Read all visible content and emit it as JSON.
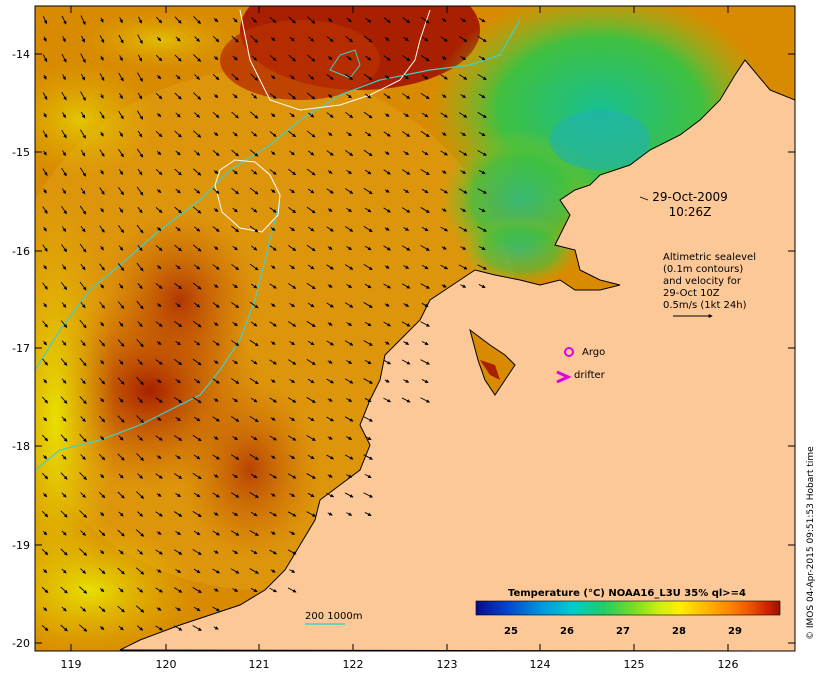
{
  "map": {
    "date_stamp": "29-Oct-2009",
    "time_stamp": "10:26Z",
    "lat_ticks": [
      "-14",
      "-15",
      "-16",
      "-17",
      "-18",
      "-19",
      "-20"
    ],
    "lon_ticks": [
      "119",
      "120",
      "121",
      "122",
      "123",
      "124",
      "125",
      "126"
    ]
  },
  "legend_text": {
    "line1": "Altimetric sealevel",
    "line2": "(0.1m contours)",
    "line3": "and velocity for",
    "line4": "29-Oct 10Z",
    "line5": "0.5m/s (1kt 24h)"
  },
  "markers": {
    "argo_label": "Argo",
    "drifter_label": "drifter"
  },
  "scale_bar": {
    "bathymetry_label": "200  1000m"
  },
  "colorbar": {
    "title": "Temperature (°C) NOAA16_L3U 35% ql>=4",
    "ticks": [
      "25",
      "26",
      "27",
      "28",
      "29"
    ],
    "colors": [
      "#0a0a8c",
      "#0044cc",
      "#0099dd",
      "#00cccc",
      "#22cc66",
      "#77dd22",
      "#ccee11",
      "#ffee00",
      "#ffbb00",
      "#ff8800",
      "#ee5500",
      "#cc2200",
      "#991100"
    ]
  },
  "credit": "© IMOS 04-Apr-2015 09:51:53 Hobart time",
  "colors": {
    "land": "#fcc898",
    "warm_sea": "#e09000",
    "hot_sea": "#a82000",
    "cool_sea": "#30c060",
    "bathymetry_line": "#40d0c8",
    "marker": "#e000e0"
  }
}
